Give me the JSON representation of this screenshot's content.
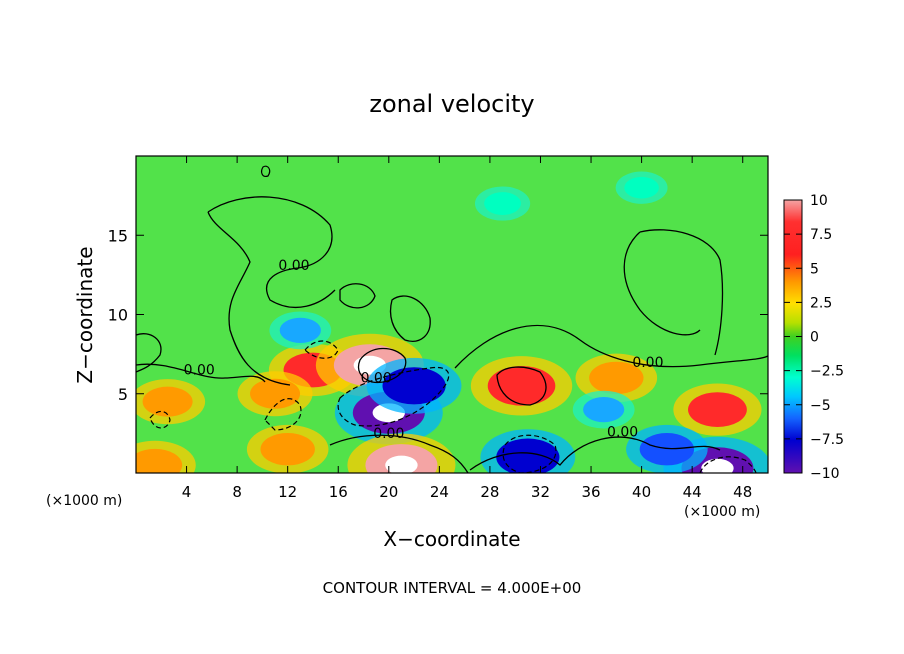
{
  "chart_data": {
    "type": "heatmap",
    "title": "zonal velocity",
    "xlabel": "X−coordinate",
    "ylabel": "Z−coordinate",
    "x_unit_left": "(×1000 m)",
    "x_unit_right": "(×1000 m)",
    "xlim": [
      0,
      50
    ],
    "ylim": [
      0,
      20
    ],
    "x_ticks": [
      4,
      8,
      12,
      16,
      20,
      24,
      28,
      32,
      36,
      40,
      44,
      48
    ],
    "x_tick_labels": [
      "4",
      "8",
      "12",
      "16",
      "20",
      "24",
      "28",
      "32",
      "36",
      "40",
      "44",
      "48"
    ],
    "y_ticks": [
      5,
      10,
      15
    ],
    "y_tick_labels": [
      "5",
      "10",
      "15"
    ],
    "colorbar": {
      "min": -10,
      "max": 10,
      "ticks": [
        10,
        7.5,
        5,
        2.5,
        0,
        -2.5,
        -5,
        -7.5,
        -10
      ],
      "tick_labels": [
        "10",
        "7.5",
        "5",
        "2.5",
        "0",
        "−2.5",
        "−5",
        "−7.5",
        "−10"
      ]
    },
    "contour_interval_text": "CONTOUR INTERVAL = 4.000E+00",
    "contour_labels": [
      {
        "text": "0.00",
        "x": 12.5,
        "z": 12.8
      },
      {
        "text": "0.00",
        "x": 5.0,
        "z": 6.2
      },
      {
        "text": "0.00",
        "x": 19.0,
        "z": 5.7
      },
      {
        "text": "0.00",
        "x": 20.0,
        "z": 2.2
      },
      {
        "text": "0.00",
        "x": 40.5,
        "z": 6.7
      },
      {
        "text": "0.00",
        "x": 38.5,
        "z": 2.3
      }
    ],
    "features": [
      {
        "x": 14,
        "z": 6.5,
        "value": 7
      },
      {
        "x": 18.5,
        "z": 6.8,
        "value": 10
      },
      {
        "x": 20,
        "z": 3.8,
        "value": -10
      },
      {
        "x": 22,
        "z": 5.5,
        "value": -8
      },
      {
        "x": 21,
        "z": 0.5,
        "value": 10
      },
      {
        "x": 30.5,
        "z": 5.5,
        "value": 9
      },
      {
        "x": 38,
        "z": 6,
        "value": 6
      },
      {
        "x": 46,
        "z": 4,
        "value": 7
      },
      {
        "x": 46,
        "z": 0.3,
        "value": -10
      },
      {
        "x": 31,
        "z": 1,
        "value": -8
      },
      {
        "x": 11,
        "z": 5,
        "value": 5
      },
      {
        "x": 2.5,
        "z": 4.5,
        "value": 5
      },
      {
        "x": 13,
        "z": 9,
        "value": -3
      },
      {
        "x": 29,
        "z": 17,
        "value": -2
      },
      {
        "x": 40,
        "z": 18,
        "value": -1.5
      },
      {
        "x": 12,
        "z": 1.5,
        "value": 6
      },
      {
        "x": 1.5,
        "z": 0.5,
        "value": 6
      },
      {
        "x": 42,
        "z": 1.5,
        "value": -6
      },
      {
        "x": 37,
        "z": 4,
        "value": -3
      }
    ]
  }
}
